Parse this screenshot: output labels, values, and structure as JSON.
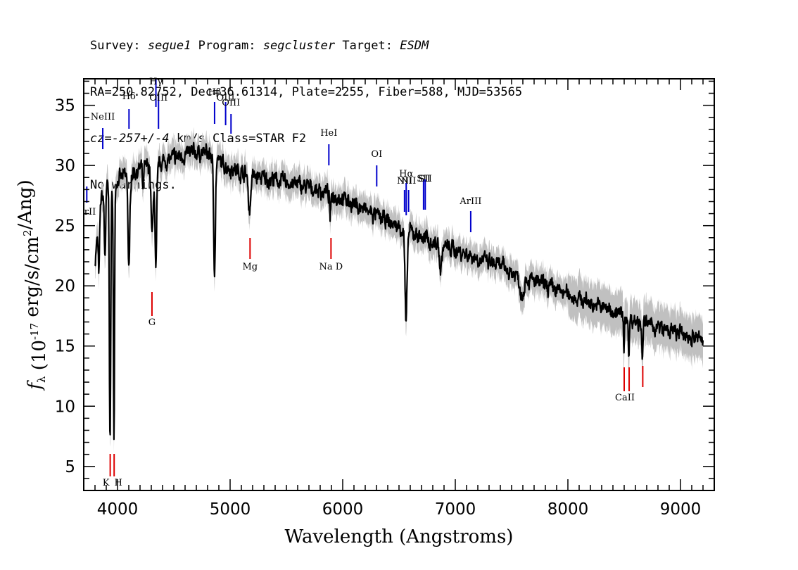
{
  "header": {
    "line1": {
      "survey_key": "Survey:",
      "survey": "segue1",
      "program_key": "Program:",
      "program": "segcluster",
      "target_key": "Target:",
      "target": "ESDM"
    },
    "line2": "RA=250.82752, Dec=36.61314, Plate=2255, Fiber=588, MJD=53565",
    "line3": {
      "cz": "cz=-257+/-4",
      "rest": " km/s Class=STAR F2"
    },
    "line4": "No warnings."
  },
  "chart_data": {
    "type": "line",
    "xlabel": "Wavelength (Angstroms)",
    "ylabel": {
      "f": "f",
      "sub": "λ",
      "open": " (10",
      "sup": "-17",
      "rest": " erg/s/cm",
      "sup2": "2",
      "tail": "/Ang)"
    },
    "xlim": [
      3700,
      9300
    ],
    "ylim": [
      3,
      37.2
    ],
    "x_ticks": [
      4000,
      5000,
      6000,
      7000,
      8000,
      9000
    ],
    "y_ticks": [
      5,
      10,
      15,
      20,
      25,
      30,
      35
    ],
    "series": [
      {
        "color": "#000000",
        "error_color": "#c0c0c0",
        "continuum": [
          [
            3800,
            22
          ],
          [
            3850,
            27
          ],
          [
            3900,
            28.5
          ],
          [
            3950,
            28
          ],
          [
            4000,
            28.8
          ],
          [
            4100,
            29.3
          ],
          [
            4200,
            29.7
          ],
          [
            4300,
            30
          ],
          [
            4400,
            30.3
          ],
          [
            4500,
            30.6
          ],
          [
            4600,
            30.9
          ],
          [
            4700,
            31.1
          ],
          [
            4800,
            31.0
          ],
          [
            4900,
            30.3
          ],
          [
            5000,
            29.8
          ],
          [
            5200,
            29.1
          ],
          [
            5400,
            28.8
          ],
          [
            5600,
            28.4
          ],
          [
            5800,
            27.9
          ],
          [
            6000,
            27.3
          ],
          [
            6200,
            26.3
          ],
          [
            6400,
            25.3
          ],
          [
            6600,
            24.5
          ],
          [
            6800,
            23.6
          ],
          [
            7000,
            23.0
          ],
          [
            7200,
            22.3
          ],
          [
            7400,
            21.6
          ],
          [
            7600,
            20.7
          ],
          [
            7800,
            20.0
          ],
          [
            8000,
            19.3
          ],
          [
            8200,
            18.6
          ],
          [
            8400,
            17.9
          ],
          [
            8600,
            17.1
          ],
          [
            8800,
            16.5
          ],
          [
            9000,
            16.0
          ],
          [
            9200,
            15.5
          ]
        ],
        "absorption": [
          [
            3835,
            4.5,
            6
          ],
          [
            3889,
            5.5,
            7
          ],
          [
            3933.7,
            21,
            6
          ],
          [
            3968.5,
            21.5,
            5
          ],
          [
            4101.7,
            8,
            8
          ],
          [
            4226,
            2,
            5
          ],
          [
            4307,
            6,
            9
          ],
          [
            4340.5,
            9,
            8
          ],
          [
            4861.3,
            9,
            8
          ],
          [
            5172,
            3,
            10
          ],
          [
            5890,
            2,
            6
          ],
          [
            6562.8,
            8,
            9
          ],
          [
            6870,
            2,
            10
          ],
          [
            7590,
            1.5,
            15
          ],
          [
            8498,
            3,
            4
          ],
          [
            8542,
            3.5,
            4
          ],
          [
            8662,
            3,
            4
          ]
        ]
      }
    ],
    "annotations_emission": [
      {
        "label": "ArII",
        "x": 3727
      },
      {
        "label": "NeIII",
        "x": 3869
      },
      {
        "label": "Hδ",
        "x": 4102
      },
      {
        "label": "Hγ",
        "x": 4341
      },
      {
        "label": "OIII",
        "x": 4364
      },
      {
        "label": "Hβ",
        "x": 4862
      },
      {
        "label": "OIII",
        "x": 4960
      },
      {
        "label": "OIII",
        "x": 5008
      },
      {
        "label": "HeI",
        "x": 5877
      },
      {
        "label": "OI",
        "x": 6302
      },
      {
        "label": "NII",
        "x": 6549
      },
      {
        "label": "Hα",
        "x": 6564
      },
      {
        "label": "NII",
        "x": 6585
      },
      {
        "label": "SII",
        "x": 6718
      },
      {
        "label": "SII",
        "x": 6733
      },
      {
        "label": "ArIII",
        "x": 7137
      }
    ],
    "annotations_absorption": [
      {
        "label": "K",
        "x": 3935
      },
      {
        "label": "H",
        "x": 3970
      },
      {
        "label": "G",
        "x": 4306
      },
      {
        "label": "Mg",
        "x": 5177
      },
      {
        "label": "Na D",
        "x": 5896
      },
      {
        "label": "CaII",
        "x": 8500
      },
      {
        "label": "CaII",
        "x": 8544
      },
      {
        "label": "CaII",
        "x": 8665
      }
    ],
    "colors": {
      "emission": "#0000cc",
      "absorption": "#dd0000",
      "error": "#c0c0c0",
      "flux": "#000000"
    }
  }
}
